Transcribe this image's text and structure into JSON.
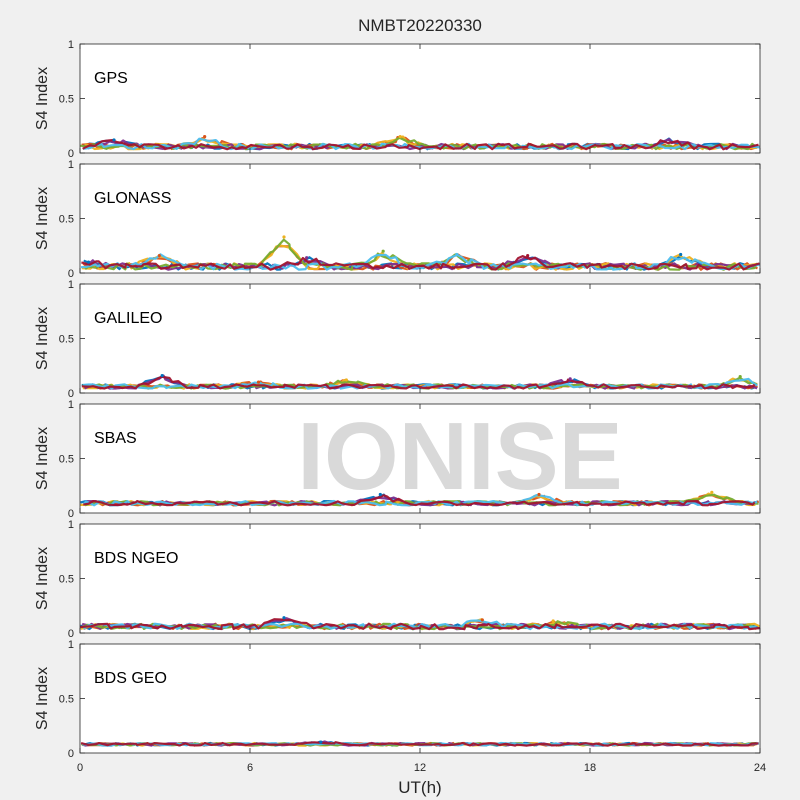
{
  "title": "NMBT20220330",
  "watermark": "IONISE",
  "colors": {
    "axes": "#262626",
    "background": "#f0f0f0",
    "plot_background": "#ffffff",
    "watermark": "#d9d9d9",
    "series": [
      "#0072BD",
      "#D95319",
      "#EDB120",
      "#7E2F8E",
      "#77AC30",
      "#4DBEEE",
      "#A2142F"
    ]
  },
  "chart_data": [
    {
      "type": "scatter",
      "panel_label": "GPS",
      "ylabel": "S4 Index",
      "xlim": [
        0,
        24
      ],
      "ylim": [
        0,
        1
      ],
      "yticks": [
        "0",
        "0.5",
        "1"
      ],
      "typical_s4": 0.06,
      "spread": 0.025,
      "track_bumps": [
        {
          "x": 1.2,
          "y": 0.12
        },
        {
          "x": 4.4,
          "y": 0.15
        },
        {
          "x": 11.3,
          "y": 0.15
        },
        {
          "x": 20.8,
          "y": 0.12
        }
      ]
    },
    {
      "type": "scatter",
      "panel_label": "GLONASS",
      "ylabel": "S4 Index",
      "xlim": [
        0,
        24
      ],
      "ylim": [
        0,
        1
      ],
      "yticks": [
        "0",
        "0.5",
        "1"
      ],
      "typical_s4": 0.06,
      "spread": 0.03,
      "track_bumps": [
        {
          "x": 0.3,
          "y": 0.1
        },
        {
          "x": 2.8,
          "y": 0.16
        },
        {
          "x": 7.2,
          "y": 0.33
        },
        {
          "x": 8.0,
          "y": 0.14
        },
        {
          "x": 10.7,
          "y": 0.2
        },
        {
          "x": 13.3,
          "y": 0.17
        },
        {
          "x": 15.8,
          "y": 0.16
        },
        {
          "x": 21.2,
          "y": 0.17
        }
      ]
    },
    {
      "type": "scatter",
      "panel_label": "GALILEO",
      "ylabel": "S4 Index",
      "xlim": [
        0,
        24
      ],
      "ylim": [
        0,
        1
      ],
      "yticks": [
        "0",
        "0.5",
        "1"
      ],
      "typical_s4": 0.06,
      "spread": 0.02,
      "track_bumps": [
        {
          "x": 2.9,
          "y": 0.16
        },
        {
          "x": 6.3,
          "y": 0.1
        },
        {
          "x": 9.4,
          "y": 0.12
        },
        {
          "x": 17.3,
          "y": 0.13
        },
        {
          "x": 23.3,
          "y": 0.15
        }
      ]
    },
    {
      "type": "scatter",
      "panel_label": "SBAS",
      "ylabel": "S4 Index",
      "xlim": [
        0,
        24
      ],
      "ylim": [
        0,
        1
      ],
      "yticks": [
        "0",
        "0.5",
        "1"
      ],
      "typical_s4": 0.09,
      "spread": 0.02,
      "track_bumps": [
        {
          "x": 10.6,
          "y": 0.17
        },
        {
          "x": 16.2,
          "y": 0.17
        },
        {
          "x": 22.3,
          "y": 0.19
        }
      ]
    },
    {
      "type": "scatter",
      "panel_label": "BDS NGEO",
      "ylabel": "S4 Index",
      "xlim": [
        0,
        24
      ],
      "ylim": [
        0,
        1
      ],
      "yticks": [
        "0",
        "0.5",
        "1"
      ],
      "typical_s4": 0.06,
      "spread": 0.025,
      "track_bumps": [
        {
          "x": 7.2,
          "y": 0.14
        },
        {
          "x": 14.2,
          "y": 0.12
        },
        {
          "x": 16.7,
          "y": 0.11
        }
      ]
    },
    {
      "type": "scatter",
      "panel_label": "BDS GEO",
      "ylabel": "S4 Index",
      "xlim": [
        0,
        24
      ],
      "ylim": [
        0,
        1
      ],
      "yticks": [
        "0",
        "0.5",
        "1"
      ],
      "typical_s4": 0.08,
      "spread": 0.012,
      "track_bumps": [
        {
          "x": 8.5,
          "y": 0.1
        }
      ]
    }
  ],
  "xaxis": {
    "label": "UT(h)",
    "ticks": [
      0,
      6,
      12,
      18,
      24
    ]
  }
}
